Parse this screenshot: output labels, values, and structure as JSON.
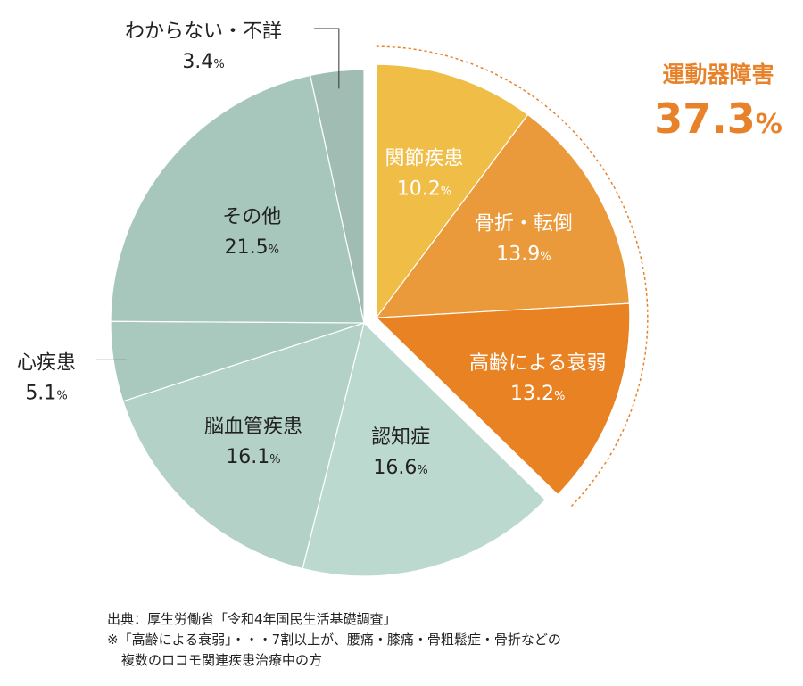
{
  "chart_data": {
    "type": "pie",
    "slices": [
      {
        "label": "関節疾患",
        "value": 10.2,
        "value_text": "10.2",
        "color": "#f0bd47",
        "group": "運動器障害"
      },
      {
        "label": "骨折・転倒",
        "value": 13.9,
        "value_text": "13.9",
        "color": "#eb9a3b",
        "group": "運動器障害"
      },
      {
        "label": "高齢による衰弱",
        "value": 13.2,
        "value_text": "13.2",
        "color": "#e88222",
        "group": "運動器障害"
      },
      {
        "label": "認知症",
        "value": 16.6,
        "value_text": "16.6",
        "color": "#bcd9d0"
      },
      {
        "label": "脳血管疾患",
        "value": 16.1,
        "value_text": "16.1",
        "color": "#b3d1c6"
      },
      {
        "label": "心疾患",
        "value": 5.1,
        "value_text": "5.1",
        "color": "#a9c9be"
      },
      {
        "label": "その他",
        "value": 21.5,
        "value_text": "21.5",
        "color": "#a8c7bc"
      },
      {
        "label": "わからない・不詳",
        "value": 3.4,
        "value_text": "3.4",
        "color": "#a0bcb3"
      }
    ],
    "unit": "%",
    "group_label": {
      "name": "運動器障害",
      "value": 37.3,
      "value_text": "37.3"
    },
    "legend": "none"
  },
  "notes": {
    "source": "出典：厚生労働省「令和4年国民生活基礎調査」",
    "note_line1": "※「高齢による衰弱」・・・7割以上が、腰痛・膝痛・骨粗鬆症・骨折などの",
    "note_line2": "複数のロコモ関連疾患治療中の方"
  }
}
